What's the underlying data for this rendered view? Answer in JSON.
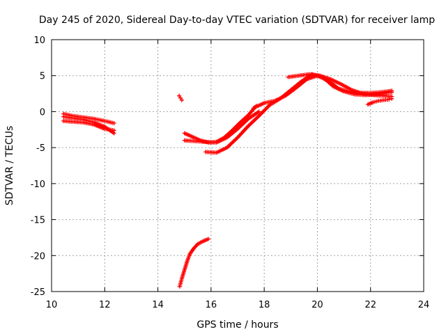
{
  "chart_data": {
    "type": "scatter",
    "title": "Day 245 of 2020, Sidereal Day-to-day VTEC variation (SDTVAR) for receiver lamp",
    "xlabel": "GPS time / hours",
    "ylabel": "SDTVAR / TECUs",
    "xlim": [
      10,
      24
    ],
    "ylim": [
      -25,
      10
    ],
    "xticks": [
      10,
      12,
      14,
      16,
      18,
      20,
      22,
      24
    ],
    "yticks": [
      -25,
      -20,
      -15,
      -10,
      -5,
      0,
      5,
      10
    ],
    "grid": true,
    "marker": "plus",
    "color": "#ff0000",
    "series": [
      {
        "name": "s1",
        "x": [
          10.45,
          10.8,
          11.2,
          11.6,
          12.0,
          12.35
        ],
        "y": [
          -0.3,
          -0.6,
          -0.8,
          -1.0,
          -1.3,
          -1.6
        ]
      },
      {
        "name": "s2",
        "x": [
          10.45,
          10.8,
          11.2,
          11.6,
          12.0,
          12.35
        ],
        "y": [
          -0.7,
          -0.9,
          -1.1,
          -1.5,
          -2.1,
          -3.0
        ]
      },
      {
        "name": "s3",
        "x": [
          10.45,
          10.8,
          11.2,
          11.6,
          12.0,
          12.35
        ],
        "y": [
          -1.3,
          -1.4,
          -1.5,
          -1.8,
          -2.4,
          -2.6
        ]
      },
      {
        "name": "s4",
        "x": [
          14.8,
          14.85,
          14.9
        ],
        "y": [
          2.2,
          1.9,
          1.6
        ]
      },
      {
        "name": "s5",
        "x": [
          14.82,
          14.9,
          15.0,
          15.1,
          15.2,
          15.35,
          15.5,
          15.7,
          15.9
        ],
        "y": [
          -24.3,
          -23.2,
          -22.0,
          -20.8,
          -19.8,
          -19.0,
          -18.4,
          -18.0,
          -17.7
        ]
      },
      {
        "name": "s6",
        "x": [
          15.0,
          15.3,
          15.6,
          15.9,
          16.2,
          16.5,
          16.8,
          17.1,
          17.4,
          17.7
        ],
        "y": [
          -3.0,
          -3.5,
          -4.0,
          -4.3,
          -4.2,
          -3.6,
          -2.6,
          -1.5,
          -0.5,
          0.8
        ]
      },
      {
        "name": "s7",
        "x": [
          15.0,
          15.4,
          15.8,
          16.2,
          16.6,
          17.0,
          17.4,
          17.8
        ],
        "y": [
          -4.0,
          -4.1,
          -4.2,
          -4.3,
          -3.6,
          -2.4,
          -1.0,
          0.0
        ]
      },
      {
        "name": "s8",
        "x": [
          15.8,
          16.2,
          16.6,
          17.0,
          17.4,
          17.8,
          18.2,
          18.6,
          19.0,
          19.4,
          19.8,
          20.2,
          20.6,
          21.0,
          21.4,
          21.8,
          22.2,
          22.6,
          22.8
        ],
        "y": [
          -5.6,
          -5.7,
          -5.0,
          -3.6,
          -2.0,
          -0.6,
          0.9,
          1.8,
          3.0,
          4.2,
          5.2,
          4.8,
          3.5,
          2.8,
          2.4,
          2.3,
          2.4,
          2.6,
          2.7
        ]
      },
      {
        "name": "s9",
        "x": [
          17.6,
          18.0,
          18.4,
          18.8,
          19.2,
          19.6,
          20.0,
          20.4,
          20.8,
          21.2,
          21.6,
          22.0,
          22.4,
          22.8
        ],
        "y": [
          0.5,
          1.2,
          1.5,
          2.2,
          3.3,
          4.5,
          5.0,
          4.3,
          3.2,
          2.8,
          2.6,
          2.6,
          2.7,
          2.9
        ]
      },
      {
        "name": "s10",
        "x": [
          18.9,
          19.3,
          19.7,
          20.1,
          20.5,
          20.9,
          21.3,
          21.7,
          22.1,
          22.5,
          22.8
        ],
        "y": [
          4.8,
          5.0,
          5.2,
          5.0,
          4.5,
          3.8,
          3.0,
          2.5,
          2.3,
          2.2,
          2.1
        ]
      },
      {
        "name": "s11",
        "x": [
          21.9,
          22.1,
          22.3,
          22.5,
          22.7,
          22.8
        ],
        "y": [
          1.0,
          1.3,
          1.5,
          1.6,
          1.7,
          1.8
        ]
      }
    ]
  }
}
